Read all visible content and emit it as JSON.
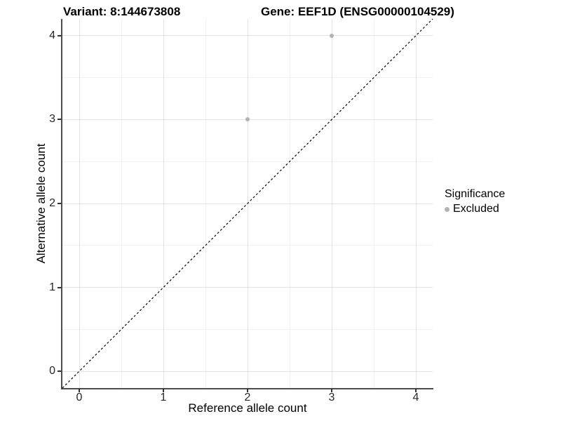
{
  "figure": {
    "background": "#ffffff",
    "title_left": "Variant: 8:144673808",
    "title_right": "Gene: EEF1D (ENSG00000104529)"
  },
  "chart_data": {
    "type": "scatter",
    "xlabel": "Reference allele count",
    "ylabel": "Alternative allele count",
    "xlim": [
      -0.2,
      4.2
    ],
    "ylim": [
      -0.2,
      4.2
    ],
    "x_ticks": [
      0,
      1,
      2,
      3,
      4
    ],
    "y_ticks": [
      0,
      1,
      2,
      3,
      4
    ],
    "x_minor": [
      0.5,
      1.5,
      2.5,
      3.5
    ],
    "y_minor": [
      0.5,
      1.5,
      2.5,
      3.5
    ],
    "grid": "major+minor",
    "series": [
      {
        "name": "Excluded",
        "marker": "circle",
        "color": "#b3b3b3",
        "points": [
          {
            "x": 2,
            "y": 3
          },
          {
            "x": 3,
            "y": 4
          }
        ]
      }
    ],
    "reference_line": {
      "kind": "identity",
      "style": "dashed",
      "color": "#000000",
      "from": [
        -0.2,
        -0.2
      ],
      "to": [
        4.2,
        4.2
      ]
    }
  },
  "legend": {
    "title": "Significance",
    "position": "right",
    "items": [
      {
        "label": "Excluded",
        "marker": "dot",
        "color": "#b3b3b3"
      }
    ]
  },
  "colors": {
    "grid_major": "#e3e3e3",
    "grid_minor": "#f0f0f0",
    "axis_line": "#4d4d4d",
    "tick_mark": "#333333",
    "tick_text": "#262626",
    "title_text": "#000000",
    "point": "#b3b3b3",
    "reference_line": "#000000"
  }
}
